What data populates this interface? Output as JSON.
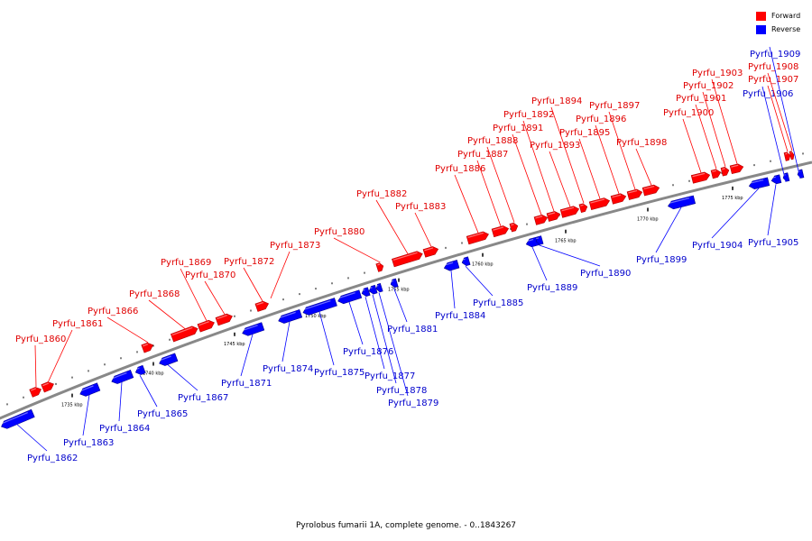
{
  "caption": "Pyrolobus fumarii 1A, complete genome. - 0..1843267",
  "legend": {
    "forward": {
      "label": "Forward",
      "color": "#ff0000"
    },
    "reverse": {
      "label": "Reverse",
      "color": "#0000ff"
    }
  },
  "colors": {
    "forward_label": "#e00000",
    "reverse_label": "#0000cc",
    "backbone": "#888888"
  },
  "scale": {
    "tick_labels": [
      "1735 kbp",
      "1740 kbp",
      "1745 kbp",
      "1750 kbp",
      "1755 kbp",
      "1760 kbp",
      "1765 kbp",
      "1770 kbp",
      "1775 kbp"
    ]
  },
  "genes": [
    {
      "name": "Pyrfu_1860",
      "strand": "forward"
    },
    {
      "name": "Pyrfu_1861",
      "strand": "forward"
    },
    {
      "name": "Pyrfu_1862",
      "strand": "reverse"
    },
    {
      "name": "Pyrfu_1863",
      "strand": "reverse"
    },
    {
      "name": "Pyrfu_1864",
      "strand": "reverse"
    },
    {
      "name": "Pyrfu_1865",
      "strand": "reverse"
    },
    {
      "name": "Pyrfu_1866",
      "strand": "forward"
    },
    {
      "name": "Pyrfu_1867",
      "strand": "reverse"
    },
    {
      "name": "Pyrfu_1868",
      "strand": "forward"
    },
    {
      "name": "Pyrfu_1869",
      "strand": "forward"
    },
    {
      "name": "Pyrfu_1870",
      "strand": "forward"
    },
    {
      "name": "Pyrfu_1871",
      "strand": "reverse"
    },
    {
      "name": "Pyrfu_1872",
      "strand": "forward"
    },
    {
      "name": "Pyrfu_1873",
      "strand": "forward"
    },
    {
      "name": "Pyrfu_1874",
      "strand": "reverse"
    },
    {
      "name": "Pyrfu_1875",
      "strand": "reverse"
    },
    {
      "name": "Pyrfu_1876",
      "strand": "reverse"
    },
    {
      "name": "Pyrfu_1877",
      "strand": "reverse"
    },
    {
      "name": "Pyrfu_1878",
      "strand": "reverse"
    },
    {
      "name": "Pyrfu_1879",
      "strand": "reverse"
    },
    {
      "name": "Pyrfu_1880",
      "strand": "forward"
    },
    {
      "name": "Pyrfu_1881",
      "strand": "reverse"
    },
    {
      "name": "Pyrfu_1882",
      "strand": "forward"
    },
    {
      "name": "Pyrfu_1883",
      "strand": "forward"
    },
    {
      "name": "Pyrfu_1884",
      "strand": "reverse"
    },
    {
      "name": "Pyrfu_1885",
      "strand": "reverse"
    },
    {
      "name": "Pyrfu_1886",
      "strand": "forward"
    },
    {
      "name": "Pyrfu_1887",
      "strand": "forward"
    },
    {
      "name": "Pyrfu_1888",
      "strand": "forward"
    },
    {
      "name": "Pyrfu_1889",
      "strand": "reverse"
    },
    {
      "name": "Pyrfu_1890",
      "strand": "reverse"
    },
    {
      "name": "Pyrfu_1891",
      "strand": "forward"
    },
    {
      "name": "Pyrfu_1892",
      "strand": "forward"
    },
    {
      "name": "Pyrfu_1893",
      "strand": "forward"
    },
    {
      "name": "Pyrfu_1894",
      "strand": "forward"
    },
    {
      "name": "Pyrfu_1895",
      "strand": "forward"
    },
    {
      "name": "Pyrfu_1896",
      "strand": "forward"
    },
    {
      "name": "Pyrfu_1897",
      "strand": "forward"
    },
    {
      "name": "Pyrfu_1898",
      "strand": "forward"
    },
    {
      "name": "Pyrfu_1899",
      "strand": "reverse"
    },
    {
      "name": "Pyrfu_1900",
      "strand": "forward"
    },
    {
      "name": "Pyrfu_1901",
      "strand": "forward"
    },
    {
      "name": "Pyrfu_1902",
      "strand": "forward"
    },
    {
      "name": "Pyrfu_1903",
      "strand": "forward"
    },
    {
      "name": "Pyrfu_1904",
      "strand": "reverse"
    },
    {
      "name": "Pyrfu_1905",
      "strand": "reverse"
    },
    {
      "name": "Pyrfu_1906",
      "strand": "reverse"
    },
    {
      "name": "Pyrfu_1907",
      "strand": "forward"
    },
    {
      "name": "Pyrfu_1908",
      "strand": "forward"
    },
    {
      "name": "Pyrfu_1909",
      "strand": "reverse"
    }
  ]
}
